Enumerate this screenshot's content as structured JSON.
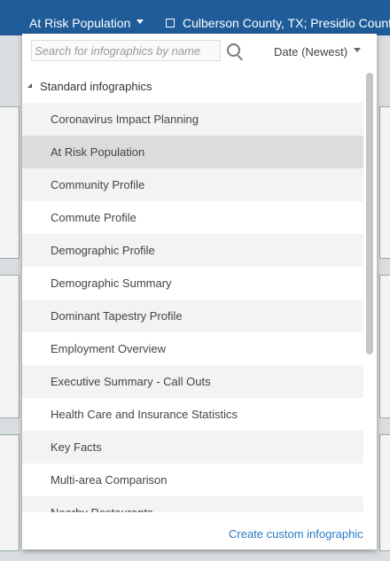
{
  "header": {
    "title": "At Risk Population",
    "location": "Culberson County, TX; Presidio County,"
  },
  "search": {
    "placeholder": "Search for infographics by name",
    "sort": "Date (Newest)"
  },
  "list": {
    "group": "Standard infographics",
    "items": [
      "Coronavirus Impact Planning",
      "At Risk Population",
      "Community Profile",
      "Commute Profile",
      "Demographic Profile",
      "Demographic Summary",
      "Dominant Tapestry Profile",
      "Employment Overview",
      "Executive Summary - Call Outs",
      "Health Care and Insurance Statistics",
      "Key Facts",
      "Multi-area Comparison",
      "Nearby Restaurants"
    ]
  },
  "footer": {
    "link": "Create custom infographic"
  }
}
